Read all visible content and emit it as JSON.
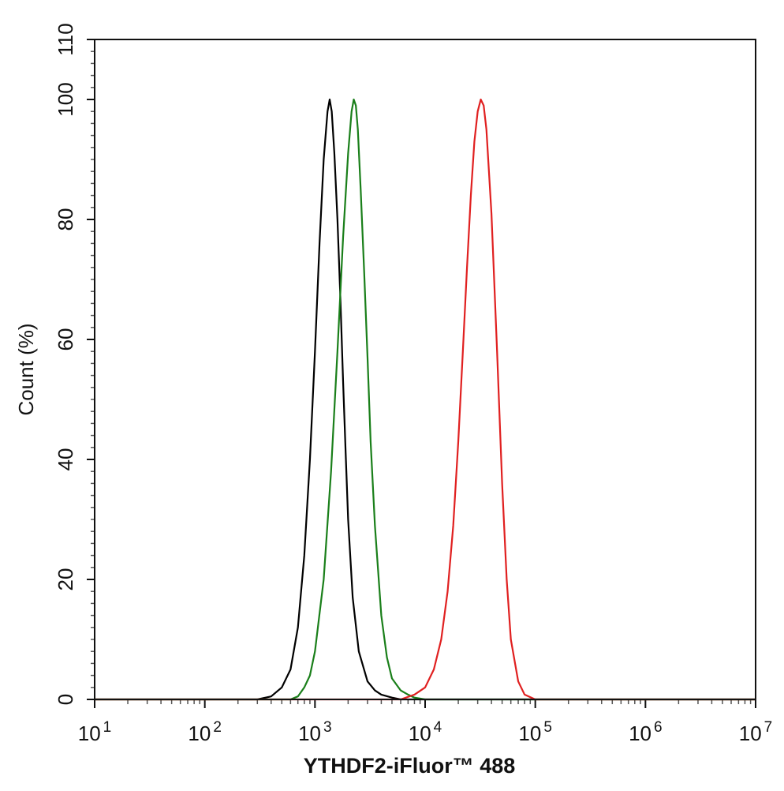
{
  "chart_data": {
    "type": "line",
    "title": "",
    "xlabel": "YTHDF2-iFluor™ 488",
    "ylabel": "Count  (%)",
    "x_scale": "log10",
    "xlim": [
      10,
      10000000
    ],
    "ylim": [
      0,
      110
    ],
    "x_ticks": [
      {
        "base": "10",
        "exp": "1"
      },
      {
        "base": "10",
        "exp": "2"
      },
      {
        "base": "10",
        "exp": "3"
      },
      {
        "base": "10",
        "exp": "4"
      },
      {
        "base": "10",
        "exp": "5"
      },
      {
        "base": "10",
        "exp": "6"
      },
      {
        "base": "10",
        "exp": "7"
      }
    ],
    "y_ticks": [
      "0",
      "20",
      "40",
      "60",
      "80",
      "100",
      "110"
    ],
    "y_tick_values": [
      0,
      20,
      40,
      60,
      80,
      100,
      110
    ],
    "grid": false,
    "legend": "none",
    "series": [
      {
        "color": "#000000",
        "x": [
          300,
          400,
          500,
          600,
          700,
          800,
          900,
          1000,
          1100,
          1200,
          1300,
          1360,
          1420,
          1500,
          1600,
          1700,
          1800,
          1900,
          2000,
          2200,
          2500,
          3000,
          3500,
          4000,
          5000,
          6000
        ],
        "y": [
          0,
          0.5,
          2,
          5,
          12,
          24,
          40,
          58,
          76,
          90,
          98,
          100,
          98,
          91,
          80,
          67,
          53,
          41,
          30,
          17,
          8,
          3,
          1.5,
          0.8,
          0.3,
          0
        ]
      },
      {
        "color": "#1a7f1a",
        "x": [
          600,
          700,
          800,
          900,
          1000,
          1200,
          1400,
          1600,
          1800,
          2000,
          2150,
          2250,
          2350,
          2450,
          2600,
          2800,
          3000,
          3200,
          3500,
          4000,
          4500,
          5000,
          6000,
          7000,
          8000,
          10000
        ],
        "y": [
          0,
          0.5,
          2,
          4,
          8,
          20,
          38,
          58,
          77,
          91,
          98,
          100,
          99,
          95,
          85,
          71,
          57,
          43,
          29,
          14,
          7,
          3.5,
          1.5,
          0.8,
          0.3,
          0
        ]
      },
      {
        "color": "#e02020",
        "x": [
          6000,
          8000,
          10000,
          12000,
          14000,
          16000,
          18000,
          20000,
          22000,
          24000,
          26000,
          28000,
          30000,
          32000,
          34000,
          36000,
          40000,
          45000,
          50000,
          55000,
          60000,
          70000,
          80000,
          100000
        ],
        "y": [
          0,
          0.8,
          2,
          5,
          10,
          18,
          29,
          43,
          58,
          72,
          84,
          93,
          98,
          100,
          99,
          95,
          81,
          58,
          36,
          20,
          10,
          3,
          0.8,
          0
        ]
      }
    ]
  }
}
